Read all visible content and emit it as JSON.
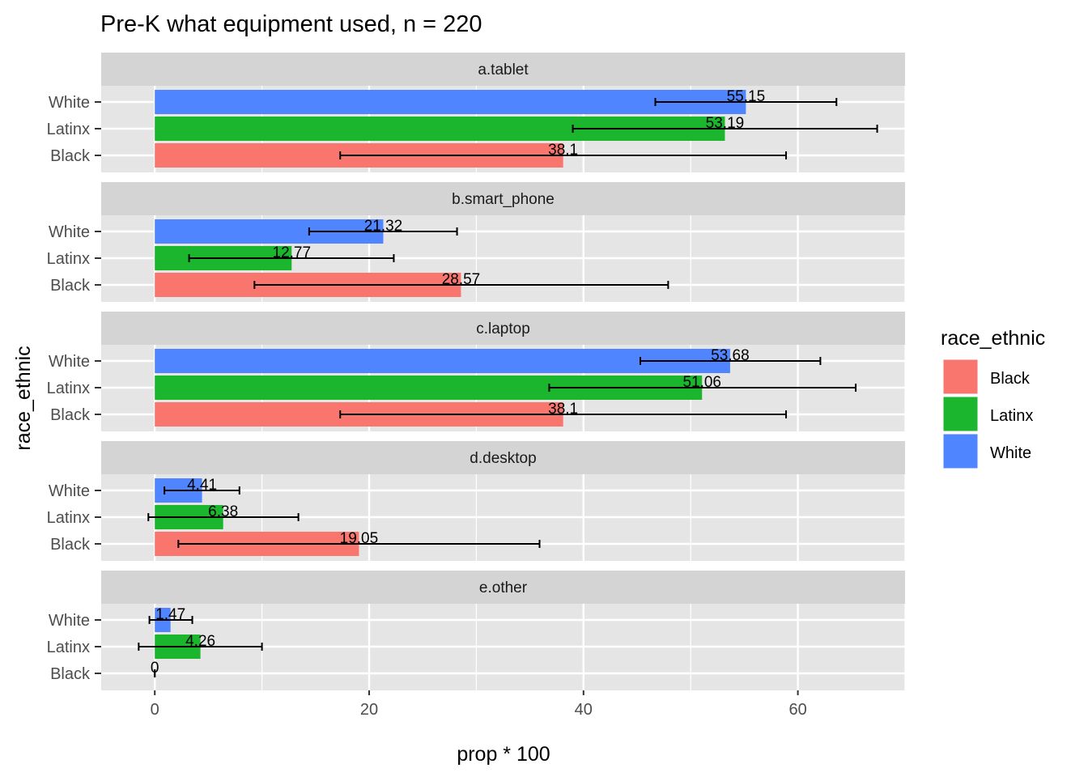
{
  "chart_data": {
    "type": "bar",
    "title": "Pre-K what equipment used, n = 220",
    "xlabel": "prop * 100",
    "ylabel": "race_ethnic",
    "xlim": [
      -5,
      70
    ],
    "x_ticks": [
      0,
      20,
      40,
      60
    ],
    "categories": [
      "White",
      "Latinx",
      "Black"
    ],
    "legend": {
      "title": "race_ethnic",
      "position": "right",
      "entries": [
        "Black",
        "Latinx",
        "White"
      ]
    },
    "colors": {
      "Black": "#F8766D",
      "Latinx": "#1CB52E",
      "White": "#4F86FF",
      "panel_bg": "#E5E5E5",
      "strip_bg": "#D4D4D4",
      "grid": "#FFFFFF"
    },
    "panels": [
      {
        "name": "a.tablet",
        "bars": [
          {
            "group": "White",
            "value": 55.15,
            "label": "55.15",
            "ci": [
              46.7,
              63.6
            ]
          },
          {
            "group": "Latinx",
            "value": 53.19,
            "label": "53.19",
            "ci": [
              39.0,
              67.4
            ]
          },
          {
            "group": "Black",
            "value": 38.1,
            "label": "38.1",
            "ci": [
              17.3,
              58.9
            ]
          }
        ]
      },
      {
        "name": "b.smart_phone",
        "bars": [
          {
            "group": "White",
            "value": 21.32,
            "label": "21.32",
            "ci": [
              14.4,
              28.2
            ]
          },
          {
            "group": "Latinx",
            "value": 12.77,
            "label": "12.77",
            "ci": [
              3.2,
              22.3
            ]
          },
          {
            "group": "Black",
            "value": 28.57,
            "label": "28.57",
            "ci": [
              9.3,
              47.9
            ]
          }
        ]
      },
      {
        "name": "c.laptop",
        "bars": [
          {
            "group": "White",
            "value": 53.68,
            "label": "53.68",
            "ci": [
              45.3,
              62.1
            ]
          },
          {
            "group": "Latinx",
            "value": 51.06,
            "label": "51.06",
            "ci": [
              36.8,
              65.4
            ]
          },
          {
            "group": "Black",
            "value": 38.1,
            "label": "38.1",
            "ci": [
              17.3,
              58.9
            ]
          }
        ]
      },
      {
        "name": "d.desktop",
        "bars": [
          {
            "group": "White",
            "value": 4.41,
            "label": "4.41",
            "ci": [
              0.9,
              7.9
            ]
          },
          {
            "group": "Latinx",
            "value": 6.38,
            "label": "6.38",
            "ci": [
              -0.6,
              13.4
            ]
          },
          {
            "group": "Black",
            "value": 19.05,
            "label": "19.05",
            "ci": [
              2.2,
              35.9
            ]
          }
        ]
      },
      {
        "name": "e.other",
        "bars": [
          {
            "group": "White",
            "value": 1.47,
            "label": "1.47",
            "ci": [
              -0.5,
              3.5
            ]
          },
          {
            "group": "Latinx",
            "value": 4.26,
            "label": "4.26",
            "ci": [
              -1.5,
              10.0
            ]
          },
          {
            "group": "Black",
            "value": 0,
            "label": "0",
            "ci": [
              0,
              0
            ]
          }
        ]
      }
    ]
  }
}
